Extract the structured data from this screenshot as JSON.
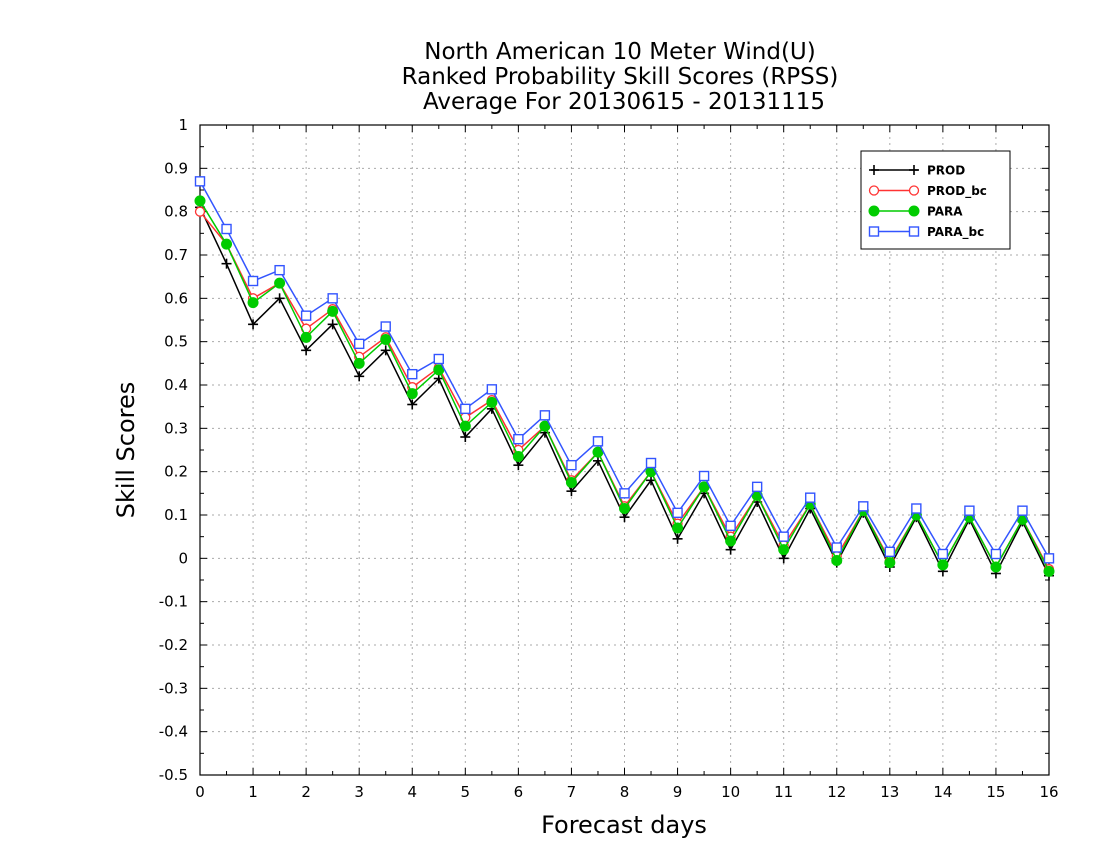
{
  "chart_data": {
    "type": "line",
    "title": "North American 10 Meter Wind(U)",
    "subtitle": "Ranked Probability Skill Scores (RPSS)",
    "subtitle2": "Average For 20130615 - 20131115",
    "xlabel": "Forecast days",
    "ylabel": "Skill Scores",
    "xlim": [
      0,
      16
    ],
    "ylim": [
      -0.5,
      1
    ],
    "xticks": [
      "0",
      "1",
      "2",
      "3",
      "4",
      "5",
      "6",
      "7",
      "8",
      "9",
      "10",
      "11",
      "12",
      "13",
      "14",
      "15",
      "16"
    ],
    "yticks": [
      "1",
      "0.9",
      "0.8",
      "0.7",
      "0.6",
      "0.5",
      "0.4",
      "0.3",
      "0.2",
      "0.1",
      "0",
      "-0.1",
      "-0.2",
      "-0.3",
      "-0.4",
      "-0.5"
    ],
    "grid": true,
    "legend_position": "top-right",
    "x": [
      0,
      0.5,
      1,
      1.5,
      2,
      2.5,
      3,
      3.5,
      4,
      4.5,
      5,
      5.5,
      6,
      6.5,
      7,
      7.5,
      8,
      8.5,
      9,
      9.5,
      10,
      10.5,
      11,
      11.5,
      12,
      12.5,
      13,
      13.5,
      14,
      14.5,
      15,
      15.5,
      16
    ],
    "series": [
      {
        "name": "PROD",
        "color": "#000000",
        "marker": "plus",
        "values": [
          0.81,
          0.68,
          0.54,
          0.6,
          0.48,
          0.54,
          0.42,
          0.48,
          0.355,
          0.415,
          0.28,
          0.345,
          0.215,
          0.29,
          0.155,
          0.225,
          0.095,
          0.18,
          0.045,
          0.15,
          0.02,
          0.13,
          0.0,
          0.115,
          -0.01,
          0.105,
          -0.02,
          0.095,
          -0.03,
          0.09,
          -0.035,
          0.085,
          -0.04
        ]
      },
      {
        "name": "PROD_bc",
        "color": "#ff3333",
        "marker": "open-circle",
        "values": [
          0.8,
          0.725,
          0.6,
          0.635,
          0.53,
          0.575,
          0.465,
          0.51,
          0.395,
          0.44,
          0.325,
          0.365,
          0.25,
          0.305,
          0.18,
          0.245,
          0.12,
          0.2,
          0.08,
          0.165,
          0.05,
          0.145,
          0.03,
          0.125,
          0.005,
          0.11,
          -0.005,
          0.1,
          -0.015,
          0.095,
          -0.02,
          0.09,
          -0.025
        ]
      },
      {
        "name": "PARA",
        "color": "#00cc00",
        "marker": "filled-circle",
        "values": [
          0.825,
          0.725,
          0.59,
          0.635,
          0.51,
          0.57,
          0.45,
          0.505,
          0.38,
          0.435,
          0.305,
          0.36,
          0.235,
          0.305,
          0.175,
          0.245,
          0.115,
          0.2,
          0.07,
          0.165,
          0.04,
          0.145,
          0.02,
          0.125,
          -0.005,
          0.11,
          -0.01,
          0.1,
          -0.015,
          0.095,
          -0.02,
          0.09,
          -0.03
        ]
      },
      {
        "name": "PARA_bc",
        "color": "#3355ff",
        "marker": "open-square",
        "values": [
          0.87,
          0.76,
          0.64,
          0.665,
          0.56,
          0.6,
          0.495,
          0.535,
          0.425,
          0.46,
          0.345,
          0.39,
          0.275,
          0.33,
          0.215,
          0.27,
          0.15,
          0.22,
          0.105,
          0.19,
          0.075,
          0.165,
          0.05,
          0.14,
          0.025,
          0.12,
          0.015,
          0.115,
          0.01,
          0.11,
          0.01,
          0.11,
          0.0
        ]
      }
    ]
  }
}
